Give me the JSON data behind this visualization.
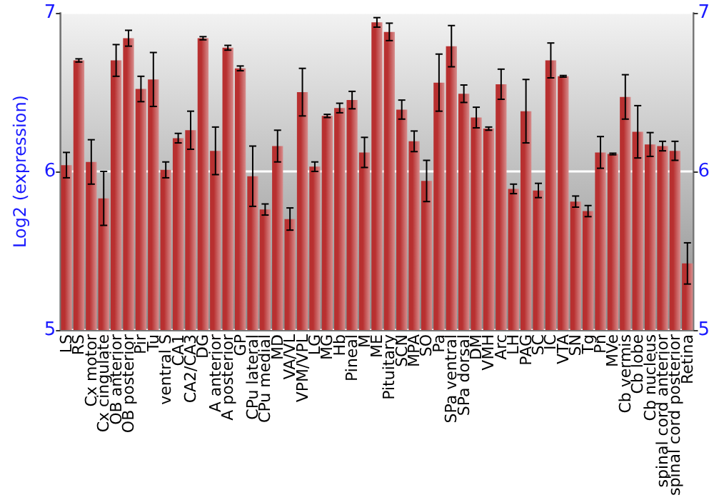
{
  "chart_data": {
    "type": "bar",
    "ylabel": "Log2 (expression)",
    "categories": [
      "LS",
      "RS",
      "Cx motor",
      "Cx cingulate",
      "OB anterior",
      "OB posterior",
      "Pir",
      "Tu",
      "ventral S",
      "CA1",
      "CA2/CA3",
      "DG",
      "A anterior",
      "A posterior",
      "GP",
      "CPu lateral",
      "CPu medial",
      "MD",
      "VA/VL",
      "VPM/VPL",
      "LG",
      "MG",
      "Hb",
      "Pineal",
      "M",
      "ME",
      "Pituitary",
      "SCN",
      "MPA",
      "SO",
      "Pa",
      "SPa ventral",
      "SPa dorsal",
      "DM",
      "VMH",
      "Arc",
      "LH",
      "PAG",
      "SC",
      "IC",
      "VTA",
      "SN",
      "Tg",
      "Pn",
      "MVe",
      "Cb vermis",
      "Cb lobe",
      "Cb nucleus",
      "spinal cord anterior",
      "spinal cord posterior",
      "Retina"
    ],
    "series": [
      {
        "color": "#b83030",
        "values": [
          6.04,
          6.7,
          6.06,
          5.83,
          6.7,
          6.84,
          6.52,
          6.58,
          6.01,
          6.21,
          6.26,
          6.84,
          6.13,
          6.78,
          6.65,
          5.97,
          5.76,
          6.16,
          5.7,
          6.5,
          6.03,
          6.35,
          6.4,
          6.45,
          6.12,
          6.94,
          6.88,
          6.39,
          6.19,
          5.94,
          6.56,
          6.79,
          6.49,
          6.34,
          6.27,
          6.55,
          5.89,
          6.38,
          5.88,
          6.7,
          6.6,
          5.81,
          5.75,
          6.12,
          6.11,
          6.47,
          6.25,
          6.17,
          6.16,
          6.13,
          5.42
        ],
        "errors": [
          0.08,
          0.01,
          0.14,
          0.17,
          0.1,
          0.05,
          0.08,
          0.17,
          0.05,
          0.03,
          0.12,
          0.01,
          0.15,
          0.015,
          0.015,
          0.19,
          0.035,
          0.1,
          0.07,
          0.15,
          0.03,
          0.01,
          0.03,
          0.055,
          0.095,
          0.03,
          0.055,
          0.06,
          0.065,
          0.13,
          0.18,
          0.13,
          0.055,
          0.065,
          0.01,
          0.095,
          0.03,
          0.2,
          0.045,
          0.11,
          0.005,
          0.035,
          0.035,
          0.1,
          0.005,
          0.14,
          0.165,
          0.075,
          0.03,
          0.06,
          0.13
        ]
      }
    ],
    "ylim": [
      5,
      7
    ],
    "yticks": [
      5,
      6,
      7
    ],
    "y2lim": [
      5,
      7
    ],
    "y2ticks": [
      5,
      6,
      7
    ],
    "grid": "y"
  }
}
